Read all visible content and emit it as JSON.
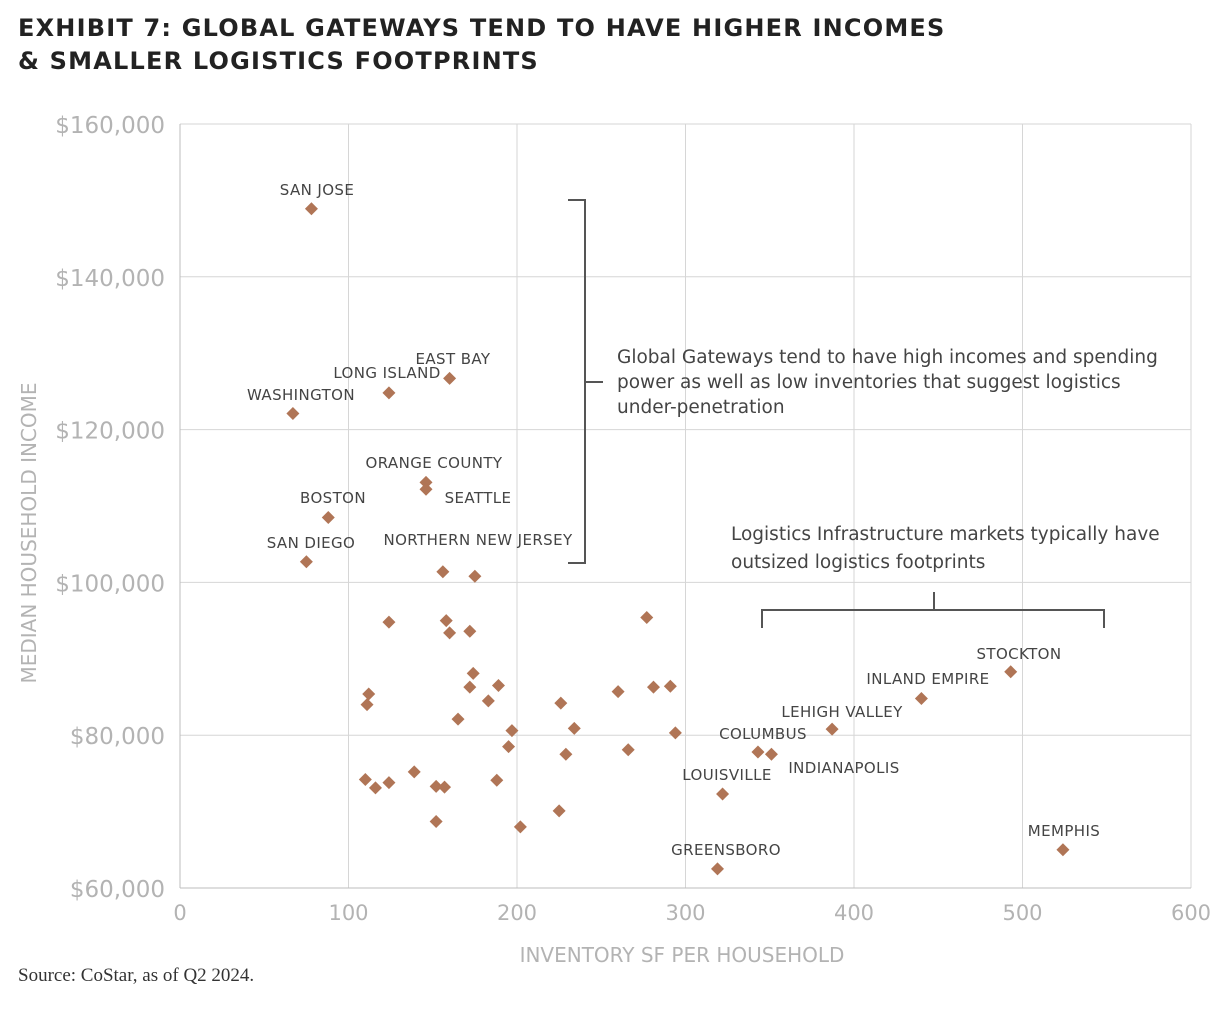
{
  "title": {
    "line1": "EXHIBIT 7: GLOBAL GATEWAYS TEND TO HAVE HIGHER INCOMES",
    "line2": "& SMALLER LOGISTICS FOOTPRINTS"
  },
  "source": "Source: CoStar, as of Q2 2024.",
  "annotations": {
    "gateways": [
      "Global Gateways tend to have high incomes and spending",
      "power as well as low inventories that suggest logistics",
      "under-penetration"
    ],
    "logistics": [
      "Logistics Infrastructure markets typically have",
      "outsized logistics footprints"
    ]
  },
  "chart_data": {
    "type": "scatter",
    "xlabel": "INVENTORY SF PER HOUSEHOLD",
    "ylabel": "MEDIAN HOUSEHOLD INCOME",
    "xlim": [
      0,
      600
    ],
    "ylim": [
      60000,
      160000
    ],
    "x_ticks": [
      0,
      100,
      200,
      300,
      400,
      500,
      600
    ],
    "x_tick_labels": [
      "0",
      "100",
      "200",
      "300",
      "400",
      "500",
      "600"
    ],
    "y_ticks": [
      60000,
      80000,
      100000,
      120000,
      140000,
      160000
    ],
    "y_tick_labels": [
      "$60,000",
      "$80,000",
      "$100,000",
      "$120,000",
      "$140,000",
      "$160,000"
    ],
    "grid": true,
    "marker_color": "#b07556",
    "points": [
      {
        "x": 78,
        "y": 148900,
        "label": "SAN JOSE"
      },
      {
        "x": 160,
        "y": 126700,
        "label": "EAST BAY"
      },
      {
        "x": 124,
        "y": 124800,
        "label": "LONG ISLAND"
      },
      {
        "x": 67,
        "y": 122100,
        "label": "WASHINGTON"
      },
      {
        "x": 146,
        "y": 113100,
        "label": "ORANGE COUNTY"
      },
      {
        "x": 146,
        "y": 112200,
        "label": "SEATTLE"
      },
      {
        "x": 88,
        "y": 108500,
        "label": "BOSTON"
      },
      {
        "x": 75,
        "y": 102700,
        "label": "SAN DIEGO"
      },
      {
        "x": 156,
        "y": 101400,
        "label": "NORTHERN NEW JERSEY"
      },
      {
        "x": 175,
        "y": 100800
      },
      {
        "x": 124,
        "y": 94800
      },
      {
        "x": 158,
        "y": 95000
      },
      {
        "x": 160,
        "y": 93400
      },
      {
        "x": 172,
        "y": 93600
      },
      {
        "x": 277,
        "y": 95400
      },
      {
        "x": 112,
        "y": 85400
      },
      {
        "x": 111,
        "y": 84000
      },
      {
        "x": 174,
        "y": 88100
      },
      {
        "x": 172,
        "y": 86300
      },
      {
        "x": 189,
        "y": 86500
      },
      {
        "x": 183,
        "y": 84500
      },
      {
        "x": 165,
        "y": 82100
      },
      {
        "x": 226,
        "y": 84200
      },
      {
        "x": 260,
        "y": 85700
      },
      {
        "x": 281,
        "y": 86300
      },
      {
        "x": 291,
        "y": 86400
      },
      {
        "x": 197,
        "y": 80600
      },
      {
        "x": 195,
        "y": 78500
      },
      {
        "x": 234,
        "y": 80900
      },
      {
        "x": 229,
        "y": 77500
      },
      {
        "x": 266,
        "y": 78100
      },
      {
        "x": 294,
        "y": 80300
      },
      {
        "x": 110,
        "y": 74200
      },
      {
        "x": 116,
        "y": 73100
      },
      {
        "x": 124,
        "y": 73800
      },
      {
        "x": 139,
        "y": 75200
      },
      {
        "x": 152,
        "y": 73300
      },
      {
        "x": 157,
        "y": 73200
      },
      {
        "x": 188,
        "y": 74100
      },
      {
        "x": 152,
        "y": 68700
      },
      {
        "x": 202,
        "y": 68000
      },
      {
        "x": 225,
        "y": 70100
      },
      {
        "x": 493,
        "y": 88300,
        "label": "STOCKTON"
      },
      {
        "x": 440,
        "y": 84800,
        "label": "INLAND EMPIRE"
      },
      {
        "x": 387,
        "y": 80800,
        "label": "LEHIGH VALLEY"
      },
      {
        "x": 343,
        "y": 77800,
        "label": "COLUMBUS"
      },
      {
        "x": 351,
        "y": 77500,
        "label": "INDIANAPOLIS"
      },
      {
        "x": 322,
        "y": 72300,
        "label": "LOUISVILLE"
      },
      {
        "x": 524,
        "y": 65000,
        "label": "MEMPHIS"
      },
      {
        "x": 319,
        "y": 62500,
        "label": "GREENSBORO"
      }
    ]
  }
}
